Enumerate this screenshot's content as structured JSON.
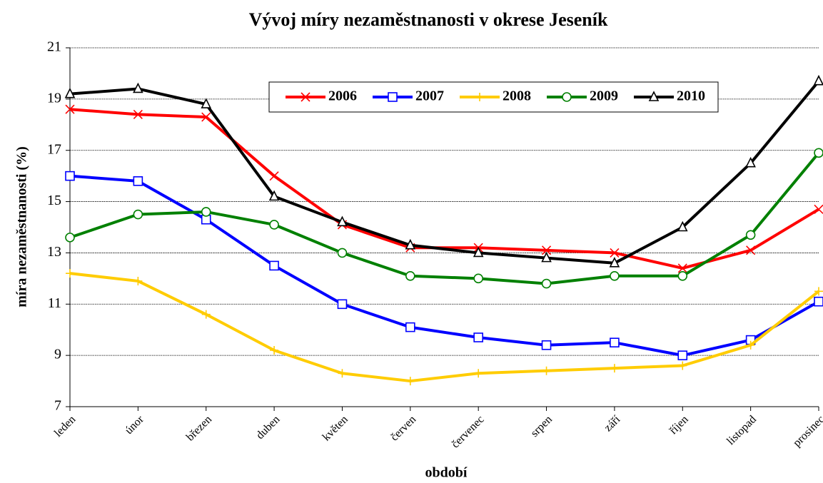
{
  "chart_data": {
    "type": "line",
    "title": "Vývoj míry nezaměstnanosti v okrese Jeseník",
    "x_label": "období",
    "y_label": "míra nezaměstnanosti (%)",
    "categories": [
      "leden",
      "únor",
      "březen",
      "duben",
      "květen",
      "červen",
      "červenec",
      "srpen",
      "září",
      "říjen",
      "listopad",
      "prosinec"
    ],
    "series": [
      {
        "name": "2006",
        "color": "#ff0000",
        "marker": "x",
        "values": [
          18.6,
          18.4,
          18.3,
          16.0,
          14.1,
          13.2,
          13.2,
          13.1,
          13.0,
          12.4,
          13.1,
          14.7
        ]
      },
      {
        "name": "2007",
        "color": "#0000ff",
        "marker": "square",
        "values": [
          16.0,
          15.8,
          14.3,
          12.5,
          11.0,
          10.1,
          9.7,
          9.4,
          9.5,
          9.0,
          9.6,
          11.1
        ]
      },
      {
        "name": "2008",
        "color": "#ffcc00",
        "marker": "plus",
        "values": [
          12.2,
          11.9,
          10.6,
          9.2,
          8.3,
          8.0,
          8.3,
          8.4,
          8.5,
          8.6,
          9.4,
          11.5
        ]
      },
      {
        "name": "2009",
        "color": "#008000",
        "marker": "circle",
        "values": [
          13.6,
          14.5,
          14.6,
          14.1,
          13.0,
          12.1,
          12.0,
          11.8,
          12.1,
          12.1,
          13.7,
          16.9
        ]
      },
      {
        "name": "2010",
        "color": "#000000",
        "marker": "triangle",
        "values": [
          19.2,
          19.4,
          18.8,
          15.2,
          14.2,
          13.3,
          13.0,
          12.8,
          12.6,
          14.0,
          16.5,
          19.7
        ]
      }
    ],
    "ylim": [
      7,
      21
    ],
    "yticks": [
      7,
      9,
      11,
      13,
      15,
      17,
      19,
      21
    ],
    "grid": true
  }
}
